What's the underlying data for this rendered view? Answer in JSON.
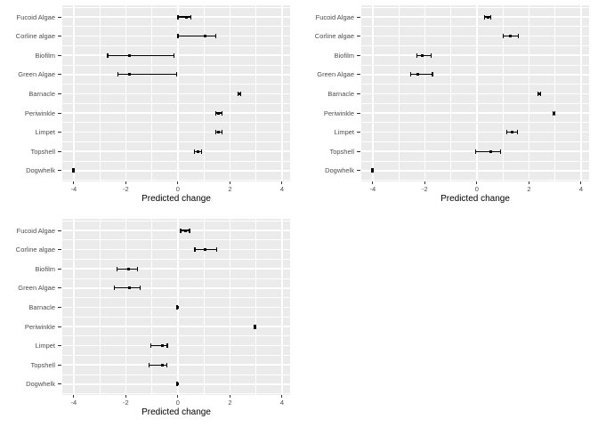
{
  "figure": {
    "background": "#ffffff",
    "panel_background": "#ebebeb",
    "gridline_color": "#ffffff",
    "axis_text_color": "#4d4d4d",
    "axis_title_color": "#000000",
    "tick_color": "#333333",
    "data_color": "#000000"
  },
  "chart_data": [
    {
      "type": "scatter",
      "subtype": "horizontal-pointrange",
      "position": "top-left",
      "title": "",
      "xlabel": "Predicted change",
      "ylabel": "",
      "x_major_ticks": [
        -4,
        -2,
        0,
        2,
        4
      ],
      "x_tick_labels": [
        "-4",
        "-2",
        "0",
        "2",
        "4"
      ],
      "x_minor_ticks": [
        -3,
        -1,
        1,
        3
      ],
      "xlim": [
        -4.44,
        4.31
      ],
      "grid": "on",
      "legend": "none",
      "categories": [
        "Fucoid Algae",
        "Corline algae",
        "Biofilm",
        "Green Algae",
        "Barnacle",
        "Periwinkle",
        "Limpet",
        "Topshell",
        "Dogwhelk"
      ],
      "points": [
        {
          "label": "Fucoid Algae",
          "estimate": 0.34,
          "lower": 0.0,
          "upper": 0.5
        },
        {
          "label": "Corline algae",
          "estimate": 1.05,
          "lower": 0.0,
          "upper": 1.45
        },
        {
          "label": "Biofilm",
          "estimate": -1.85,
          "lower": -2.7,
          "upper": -0.15
        },
        {
          "label": "Green Algae",
          "estimate": -1.85,
          "lower": -2.3,
          "upper": -0.05
        },
        {
          "label": "Barnacle",
          "estimate": 2.37,
          "lower": 2.32,
          "upper": 2.42
        },
        {
          "label": "Periwinkle",
          "estimate": 1.57,
          "lower": 1.45,
          "upper": 1.7
        },
        {
          "label": "Limpet",
          "estimate": 1.57,
          "lower": 1.44,
          "upper": 1.7
        },
        {
          "label": "Topshell",
          "estimate": 0.76,
          "lower": 0.62,
          "upper": 0.9
        },
        {
          "label": "Dogwhelk",
          "estimate": -4.0,
          "lower": -4.03,
          "upper": -3.97
        }
      ]
    },
    {
      "type": "scatter",
      "subtype": "horizontal-pointrange",
      "position": "top-right",
      "title": "",
      "xlabel": "Predicted change",
      "ylabel": "",
      "x_major_ticks": [
        -4,
        -2,
        0,
        2,
        4
      ],
      "x_tick_labels": [
        "-4",
        "-2",
        "0",
        "2",
        "4"
      ],
      "x_minor_ticks": [
        -3,
        -1,
        1,
        3
      ],
      "xlim": [
        -4.44,
        4.31
      ],
      "grid": "on",
      "legend": "none",
      "categories": [
        "Fucoid Algae",
        "Corline algae",
        "Biofilm",
        "Green Algae",
        "Barnacle",
        "Periwinkle",
        "Limpet",
        "Topshell",
        "Dogwhelk"
      ],
      "points": [
        {
          "label": "Fucoid Algae",
          "estimate": 0.42,
          "lower": 0.3,
          "upper": 0.55
        },
        {
          "label": "Corline algae",
          "estimate": 1.3,
          "lower": 1.0,
          "upper": 1.6
        },
        {
          "label": "Biofilm",
          "estimate": -2.1,
          "lower": -2.3,
          "upper": -1.75
        },
        {
          "label": "Green Algae",
          "estimate": -2.28,
          "lower": -2.55,
          "upper": -1.7
        },
        {
          "label": "Barnacle",
          "estimate": 2.4,
          "lower": 2.35,
          "upper": 2.45
        },
        {
          "label": "Periwinkle",
          "estimate": 2.95,
          "lower": 2.92,
          "upper": 3.0
        },
        {
          "label": "Limpet",
          "estimate": 1.36,
          "lower": 1.15,
          "upper": 1.55
        },
        {
          "label": "Topshell",
          "estimate": 0.52,
          "lower": -0.05,
          "upper": 0.9
        },
        {
          "label": "Dogwhelk",
          "estimate": -4.0,
          "lower": -4.03,
          "upper": -3.97
        }
      ]
    },
    {
      "type": "scatter",
      "subtype": "horizontal-pointrange",
      "position": "bottom-left",
      "title": "",
      "xlabel": "Predicted change",
      "ylabel": "",
      "x_major_ticks": [
        -4,
        -2,
        0,
        2,
        4
      ],
      "x_tick_labels": [
        "-4",
        "-2",
        "0",
        "2",
        "4"
      ],
      "x_minor_ticks": [
        -3,
        -1,
        1,
        3
      ],
      "xlim": [
        -4.44,
        4.31
      ],
      "grid": "on",
      "legend": "none",
      "categories": [
        "Fucoid Algae",
        "Corline algae",
        "Biofilm",
        "Green Algae",
        "Barnacle",
        "Periwinkle",
        "Limpet",
        "Topshell",
        "Dogwhelk"
      ],
      "points": [
        {
          "label": "Fucoid Algae",
          "estimate": 0.28,
          "lower": 0.1,
          "upper": 0.45
        },
        {
          "label": "Corline algae",
          "estimate": 1.06,
          "lower": 0.65,
          "upper": 1.5
        },
        {
          "label": "Biofilm",
          "estimate": -1.88,
          "lower": -2.35,
          "upper": -1.55
        },
        {
          "label": "Green Algae",
          "estimate": -1.86,
          "lower": -2.45,
          "upper": -1.45
        },
        {
          "label": "Barnacle",
          "estimate": -0.03,
          "lower": -0.06,
          "upper": 0.0
        },
        {
          "label": "Periwinkle",
          "estimate": 2.97,
          "lower": 2.94,
          "upper": 3.0
        },
        {
          "label": "Limpet",
          "estimate": -0.61,
          "lower": -1.05,
          "upper": -0.4
        },
        {
          "label": "Topshell",
          "estimate": -0.6,
          "lower": -1.1,
          "upper": -0.42
        },
        {
          "label": "Dogwhelk",
          "estimate": -0.03,
          "lower": -0.06,
          "upper": 0.0
        }
      ]
    }
  ]
}
